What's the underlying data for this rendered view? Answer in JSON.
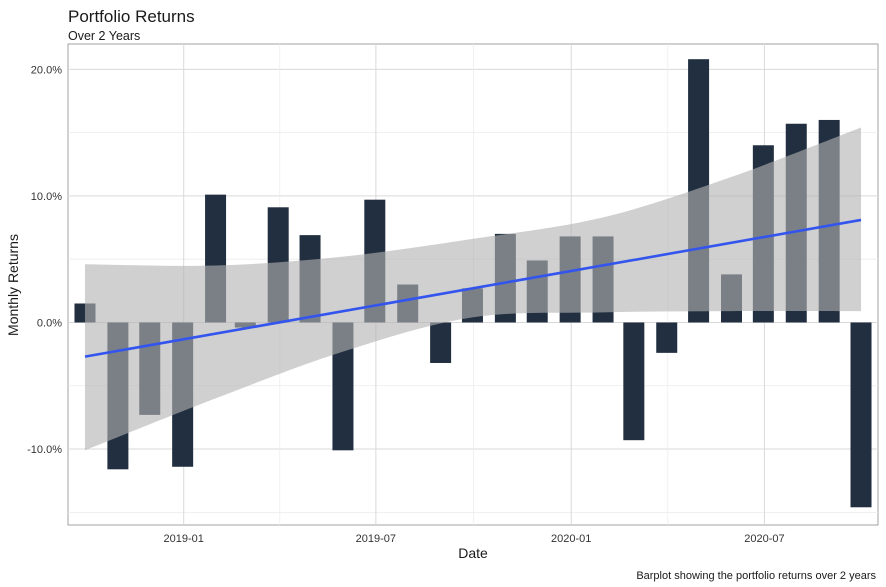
{
  "chart_data": {
    "type": "bar",
    "title": "Portfolio Returns",
    "subtitle": "Over 2 Years",
    "xlabel": "Date",
    "ylabel": "Monthly Returns",
    "caption": "Barplot showing the portfolio returns over 2 years",
    "x": [
      "2018-09-30",
      "2018-10-31",
      "2018-11-30",
      "2018-12-31",
      "2019-01-31",
      "2019-02-28",
      "2019-03-31",
      "2019-04-30",
      "2019-05-31",
      "2019-06-30",
      "2019-07-31",
      "2019-08-31",
      "2019-09-30",
      "2019-10-31",
      "2019-11-30",
      "2019-12-31",
      "2020-01-31",
      "2020-02-29",
      "2020-03-31",
      "2020-04-30",
      "2020-05-31",
      "2020-06-30",
      "2020-07-31",
      "2020-08-31",
      "2020-09-30"
    ],
    "values": [
      1.5,
      -11.6,
      -7.3,
      -11.4,
      10.1,
      -0.4,
      9.1,
      6.9,
      -10.1,
      9.7,
      3.0,
      -3.2,
      2.7,
      7.0,
      4.9,
      6.8,
      6.8,
      -9.3,
      -2.4,
      20.8,
      3.8,
      14.0,
      15.7,
      16.0,
      -14.6
    ],
    "x_ticks": [
      "2019-01-01",
      "2019-07-01",
      "2020-01-01",
      "2020-07-01"
    ],
    "x_tick_labels": [
      "2019-01",
      "2019-07",
      "2020-01",
      "2020-07"
    ],
    "y_ticks": [
      -10,
      0,
      10,
      20
    ],
    "y_tick_labels": [
      "-10.0%",
      "0.0%",
      "10.0%",
      "20.0%"
    ],
    "ylim": [
      -16,
      22
    ],
    "xlim": [
      "2018-09-14",
      "2020-10-16"
    ],
    "trend": {
      "start": {
        "x": "2018-09-30",
        "y": -2.7
      },
      "end": {
        "x": "2020-09-30",
        "y": 8.1
      }
    },
    "ribbon": {
      "x": [
        "2018-09-30",
        "2019-01-31",
        "2019-05-31",
        "2019-09-30",
        "2020-01-31",
        "2020-05-31",
        "2020-09-30"
      ],
      "upper": [
        4.6,
        4.5,
        5.2,
        6.6,
        8.3,
        11.5,
        15.4
      ],
      "lower": [
        -10.1,
        -6.0,
        -2.3,
        0.4,
        0.8,
        0.9,
        0.9
      ]
    },
    "grid": true,
    "colors": {
      "bar": "#212f40",
      "trend": "#3355ee",
      "ribbon": "#b3b3b3"
    }
  }
}
